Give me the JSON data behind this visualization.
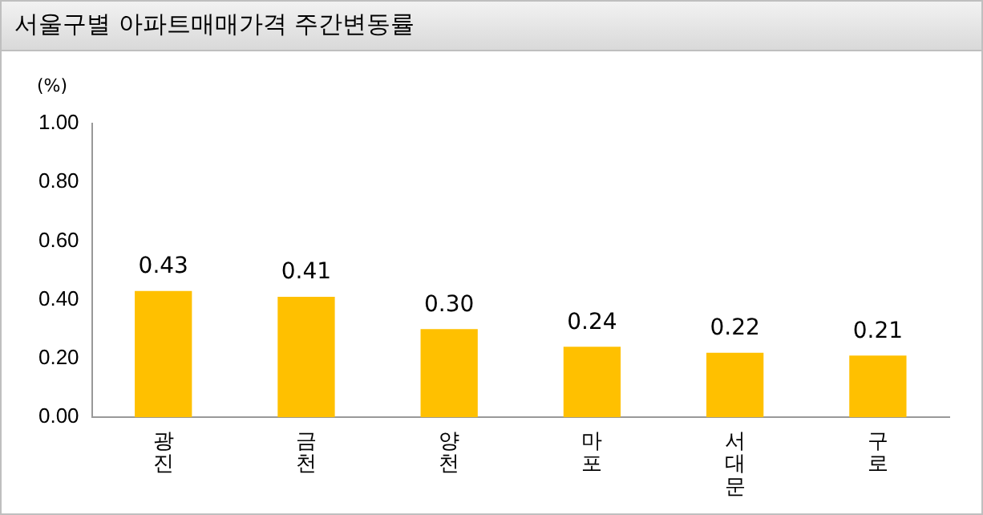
{
  "chart_data": {
    "type": "bar",
    "title": "서울구별 아파트매매가격 주간변동률",
    "ylabel": "(%)",
    "categories": [
      "광진",
      "금천",
      "양천",
      "마포",
      "서대문",
      "구로"
    ],
    "values": [
      0.43,
      0.41,
      0.3,
      0.24,
      0.22,
      0.21
    ],
    "value_labels": [
      "0.43",
      "0.41",
      "0.30",
      "0.24",
      "0.22",
      "0.21"
    ],
    "color": "#ffc000",
    "ylim": [
      0,
      1
    ],
    "yticks": [
      {
        "value": 0,
        "label": "0.00"
      },
      {
        "value": 0.2,
        "label": "0.20"
      },
      {
        "value": 0.4,
        "label": "0.40"
      },
      {
        "value": 0.6,
        "label": "0.60"
      },
      {
        "value": 0.8,
        "label": "0.80"
      },
      {
        "value": 1,
        "label": "1.00"
      }
    ],
    "grid": false,
    "legend": false
  }
}
